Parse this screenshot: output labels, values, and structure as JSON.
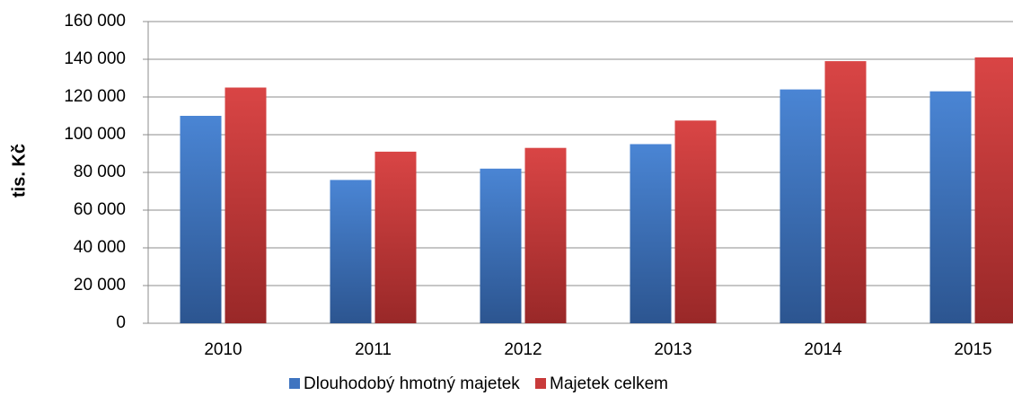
{
  "chart_data": {
    "type": "bar",
    "ylabel": "tis. Kč",
    "categories": [
      "2010",
      "2011",
      "2012",
      "2013",
      "2014",
      "2015"
    ],
    "series": [
      {
        "name": "Dlouhodobý hmotný majetek",
        "color": "#3f74c0",
        "values": [
          110000,
          76000,
          82000,
          95000,
          124000,
          123000
        ]
      },
      {
        "name": "Majetek celkem",
        "color": "#c83a3a",
        "values": [
          125000,
          91000,
          93000,
          107500,
          139000,
          141000
        ]
      }
    ],
    "ylim": [
      0,
      160000
    ],
    "yticks": [
      0,
      {
        "value": 20000,
        "label": "20 000"
      },
      {
        "value": 40000,
        "label": "40 000"
      },
      {
        "value": 60000,
        "label": "60 000"
      },
      {
        "value": 80000,
        "label": "80 000"
      },
      {
        "value": 100000,
        "label": "100 000"
      },
      {
        "value": 120000,
        "label": "120 000"
      },
      {
        "value": 140000,
        "label": "140 000"
      },
      {
        "value": 160000,
        "label": "160 000"
      }
    ],
    "grid": true,
    "legend": "bottom"
  }
}
